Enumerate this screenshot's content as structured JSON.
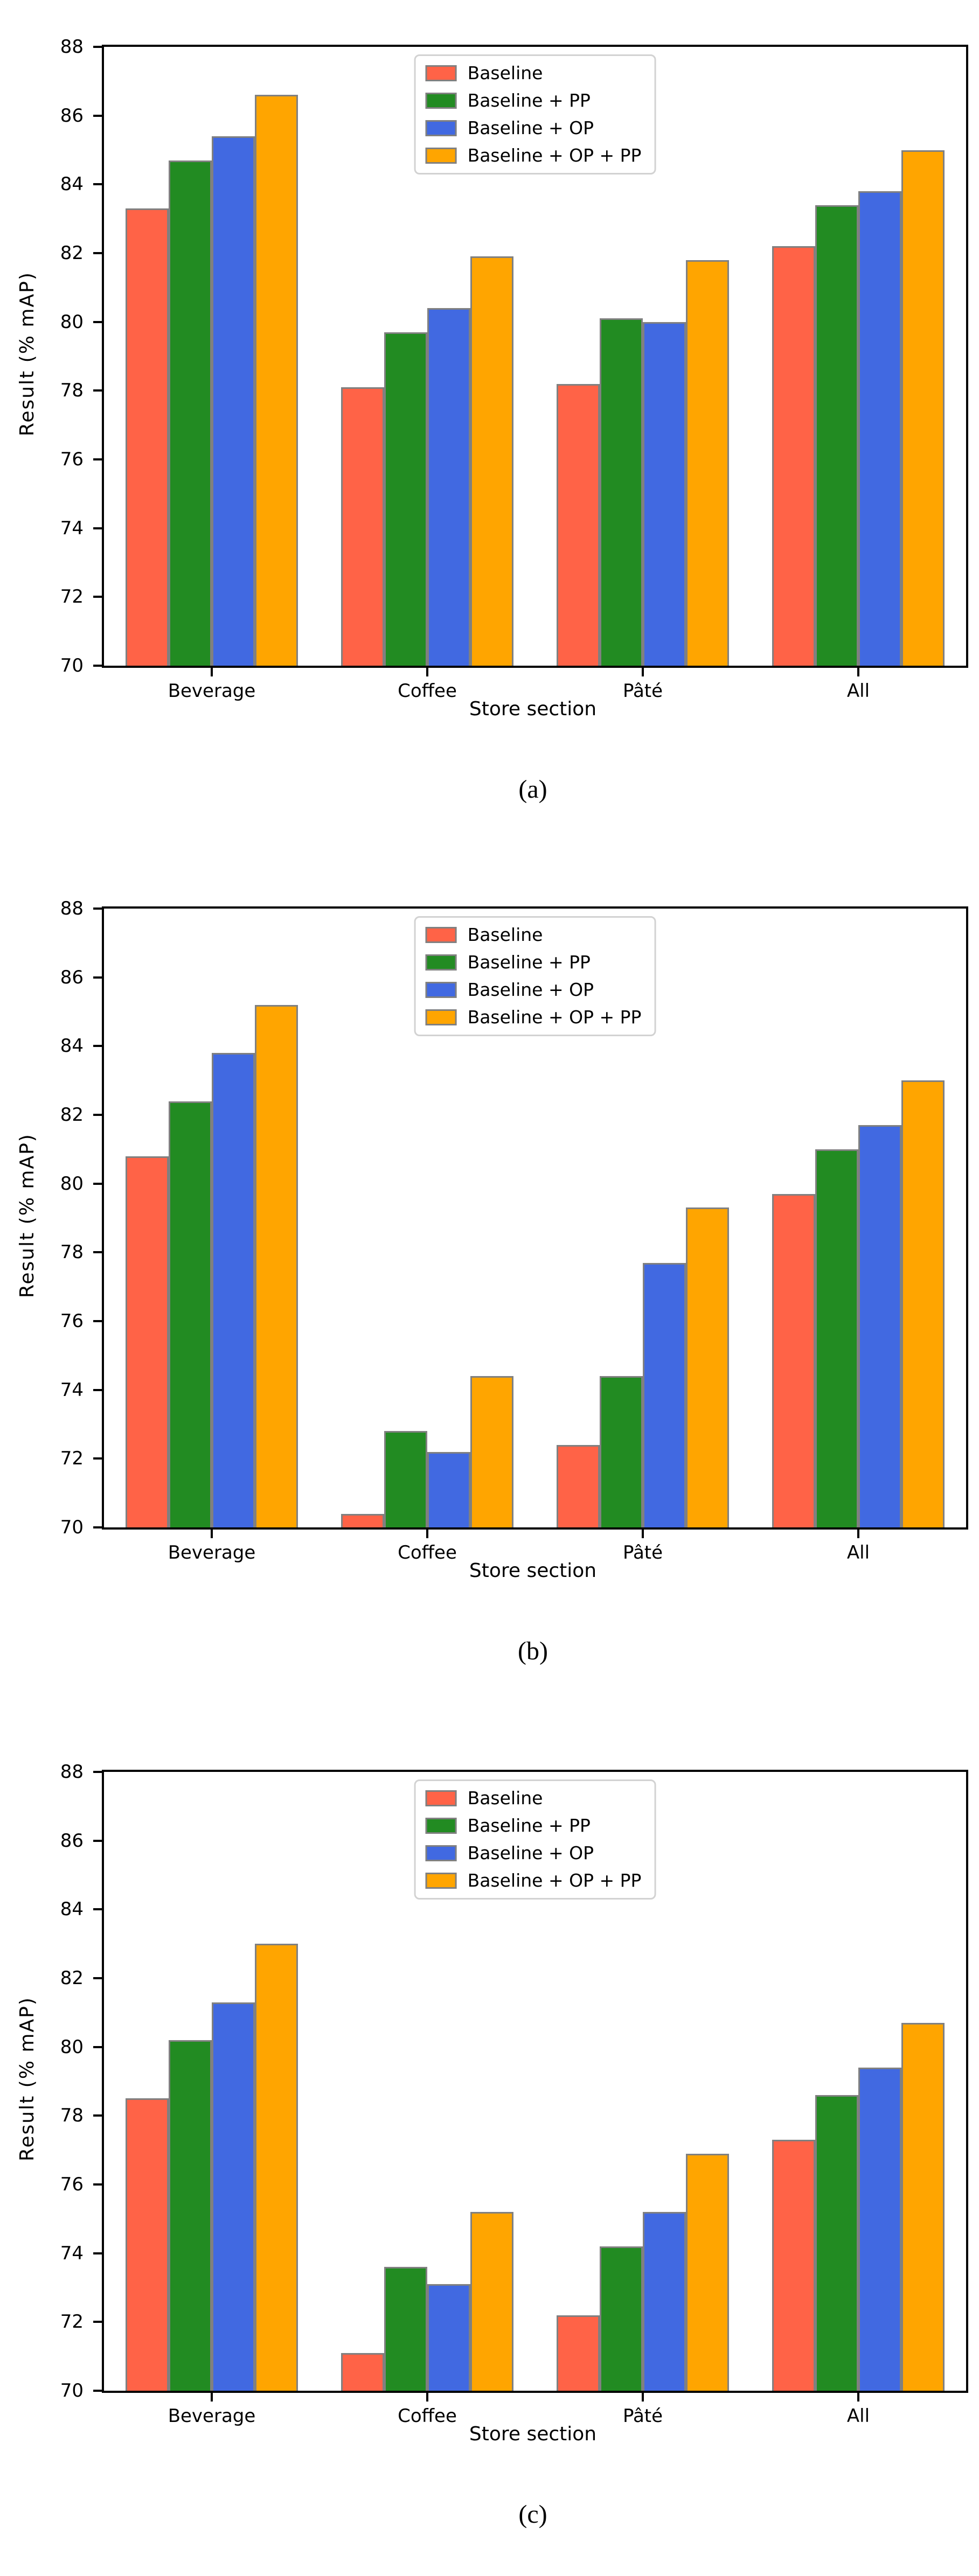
{
  "page": {
    "background": "#ffffff",
    "axis_color": "#000000",
    "bar_edge_color": "#808080",
    "legend_border_color": "#d2d2d2"
  },
  "chart_data": [
    {
      "id": "a",
      "type": "bar",
      "caption": "(a)",
      "title": "",
      "xlabel": "Store section",
      "ylabel": "Result (% mAP)",
      "ylim": [
        70,
        88
      ],
      "ytick_step": 2,
      "grid": false,
      "legend_position": "upper center",
      "categories": [
        "Beverage",
        "Coffee",
        "Pâté",
        "All"
      ],
      "series": [
        {
          "name": "Baseline",
          "color": "#ff6347",
          "values": [
            83.3,
            78.1,
            78.2,
            82.2
          ]
        },
        {
          "name": "Baseline + PP",
          "color": "#228b22",
          "values": [
            84.7,
            79.7,
            80.1,
            83.4
          ]
        },
        {
          "name": "Baseline + OP",
          "color": "#4169e1",
          "values": [
            85.4,
            80.4,
            80.0,
            83.8
          ]
        },
        {
          "name": "Baseline + OP + PP",
          "color": "#ffa500",
          "values": [
            86.6,
            81.9,
            81.8,
            85.0
          ]
        }
      ]
    },
    {
      "id": "b",
      "type": "bar",
      "caption": "(b)",
      "title": "",
      "xlabel": "Store section",
      "ylabel": "Result (% mAP)",
      "ylim": [
        70,
        88
      ],
      "ytick_step": 2,
      "grid": false,
      "legend_position": "upper center",
      "categories": [
        "Beverage",
        "Coffee",
        "Pâté",
        "All"
      ],
      "series": [
        {
          "name": "Baseline",
          "color": "#ff6347",
          "values": [
            80.8,
            70.4,
            72.4,
            79.7
          ]
        },
        {
          "name": "Baseline + PP",
          "color": "#228b22",
          "values": [
            82.4,
            72.8,
            74.4,
            81.0
          ]
        },
        {
          "name": "Baseline + OP",
          "color": "#4169e1",
          "values": [
            83.8,
            72.2,
            77.7,
            81.7
          ]
        },
        {
          "name": "Baseline + OP + PP",
          "color": "#ffa500",
          "values": [
            85.2,
            74.4,
            79.3,
            83.0
          ]
        }
      ]
    },
    {
      "id": "c",
      "type": "bar",
      "caption": "(c)",
      "title": "",
      "xlabel": "Store section",
      "ylabel": "Result (% mAP)",
      "ylim": [
        70,
        88
      ],
      "ytick_step": 2,
      "grid": false,
      "legend_position": "upper center",
      "categories": [
        "Beverage",
        "Coffee",
        "Pâté",
        "All"
      ],
      "series": [
        {
          "name": "Baseline",
          "color": "#ff6347",
          "values": [
            78.5,
            71.1,
            72.2,
            77.3
          ]
        },
        {
          "name": "Baseline + PP",
          "color": "#228b22",
          "values": [
            80.2,
            73.6,
            74.2,
            78.6
          ]
        },
        {
          "name": "Baseline + OP",
          "color": "#4169e1",
          "values": [
            81.3,
            73.1,
            75.2,
            79.4
          ]
        },
        {
          "name": "Baseline + OP + PP",
          "color": "#ffa500",
          "values": [
            83.0,
            75.2,
            76.9,
            80.7
          ]
        }
      ]
    }
  ]
}
